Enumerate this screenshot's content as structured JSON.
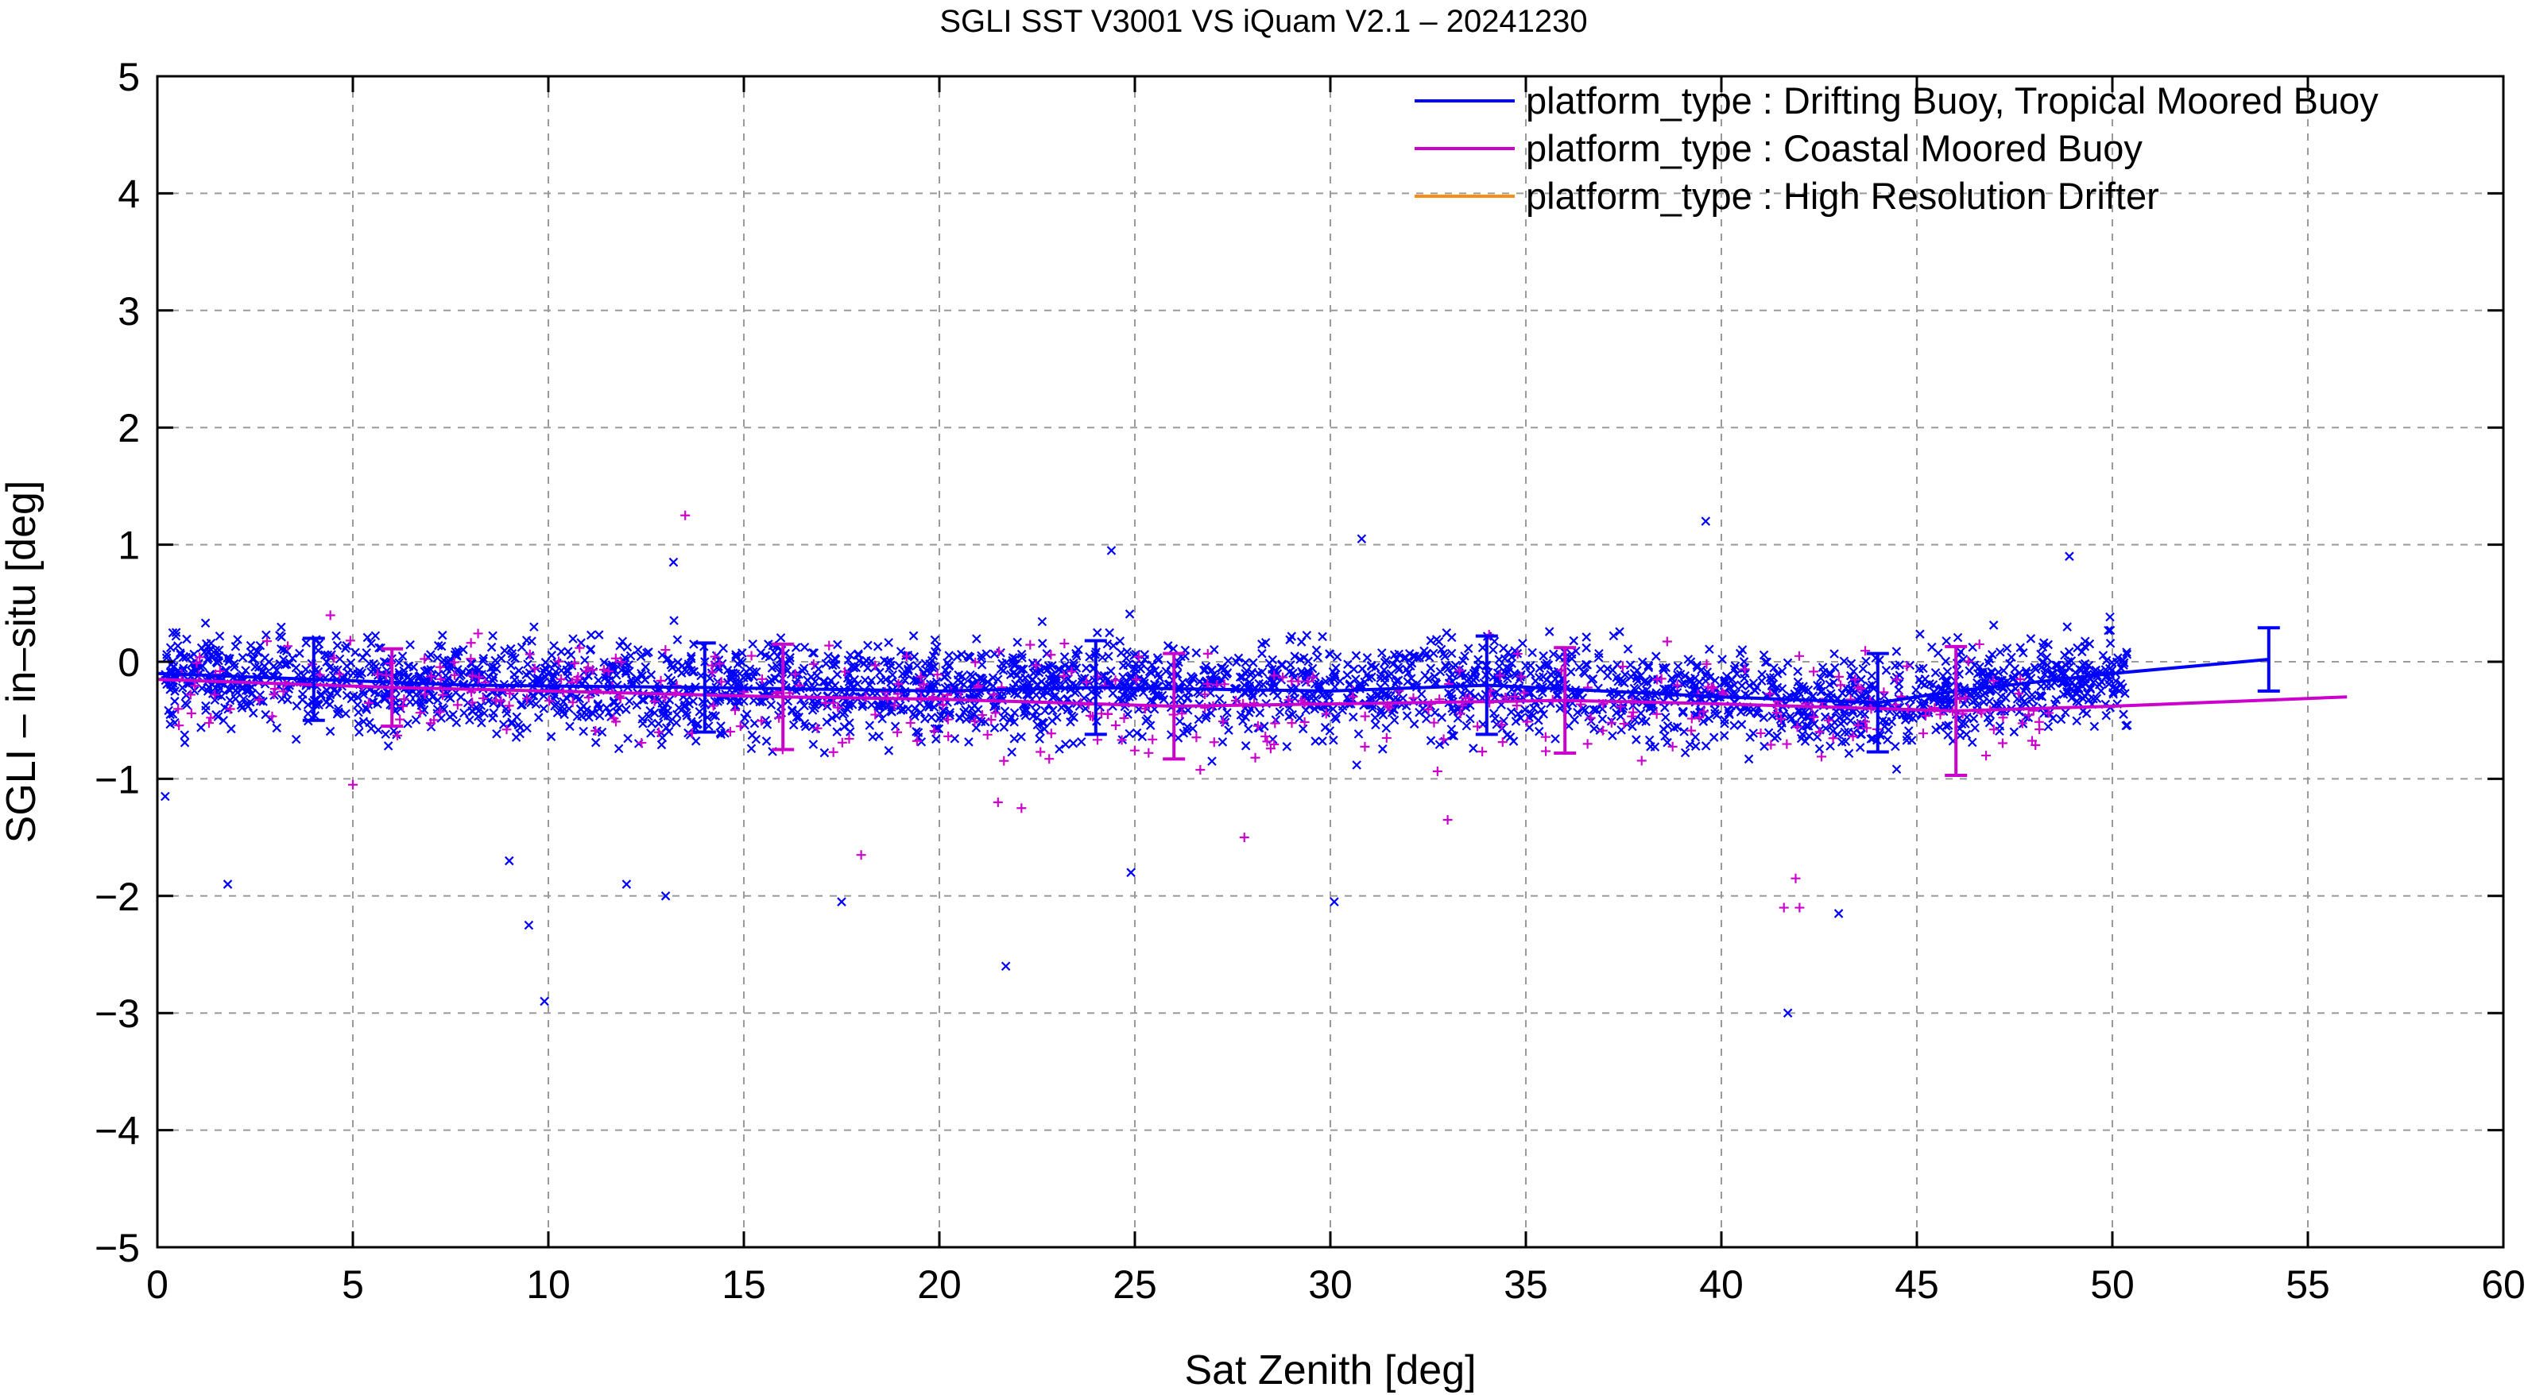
{
  "chart_data": {
    "type": "scatter",
    "title": "SGLI SST V3001 VS iQuam V2.1  – 20241230",
    "xlabel": "Sat Zenith [deg]",
    "ylabel": "SGLI – in–situ [deg]",
    "xlim": [
      0,
      60
    ],
    "ylim": [
      -5,
      5
    ],
    "xticks": [
      0,
      5,
      10,
      15,
      20,
      25,
      30,
      35,
      40,
      45,
      50,
      55,
      60
    ],
    "yticks": [
      -5,
      -4,
      -3,
      -2,
      -1,
      0,
      1,
      2,
      3,
      4,
      5
    ],
    "xtick_labels": [
      "0",
      "5",
      "10",
      "15",
      "20",
      "25",
      "30",
      "35",
      "40",
      "45",
      "50",
      "55",
      "60"
    ],
    "ytick_labels": [
      "−5",
      "−4",
      "−3",
      "−2",
      "−1",
      "0",
      "1",
      "2",
      "3",
      "4",
      "5"
    ],
    "grid": true,
    "legend_position": "top-right",
    "series": [
      {
        "name": "platform_type : Drifting Buoy, Tropical Moored Buoy",
        "color": "#0000ff",
        "marker": "x",
        "mean_line": [
          {
            "x": 0,
            "y": -0.1
          },
          {
            "x": 4,
            "y": -0.15
          },
          {
            "x": 8,
            "y": -0.2
          },
          {
            "x": 14,
            "y": -0.22
          },
          {
            "x": 20,
            "y": -0.25
          },
          {
            "x": 24,
            "y": -0.22
          },
          {
            "x": 30,
            "y": -0.25
          },
          {
            "x": 34,
            "y": -0.2
          },
          {
            "x": 40,
            "y": -0.3
          },
          {
            "x": 44,
            "y": -0.35
          },
          {
            "x": 46,
            "y": -0.25
          },
          {
            "x": 50,
            "y": -0.1
          },
          {
            "x": 54,
            "y": 0.02
          }
        ],
        "error_bars": [
          {
            "x": 4,
            "mean": -0.15,
            "sd": 0.35
          },
          {
            "x": 14,
            "mean": -0.22,
            "sd": 0.38
          },
          {
            "x": 24,
            "mean": -0.22,
            "sd": 0.4
          },
          {
            "x": 34,
            "mean": -0.2,
            "sd": 0.42
          },
          {
            "x": 44,
            "mean": -0.35,
            "sd": 0.42
          },
          {
            "x": 54,
            "mean": 0.02,
            "sd": 0.27
          }
        ],
        "outliers": [
          {
            "x": 1.8,
            "y": -1.9
          },
          {
            "x": 9.0,
            "y": -1.7
          },
          {
            "x": 9.5,
            "y": -2.25
          },
          {
            "x": 9.9,
            "y": -2.9
          },
          {
            "x": 12.0,
            "y": -1.9
          },
          {
            "x": 13.0,
            "y": -2.0
          },
          {
            "x": 17.5,
            "y": -2.05
          },
          {
            "x": 21.7,
            "y": -2.6
          },
          {
            "x": 24.9,
            "y": -1.8
          },
          {
            "x": 30.1,
            "y": -2.05
          },
          {
            "x": 41.7,
            "y": -3.0
          },
          {
            "x": 43.0,
            "y": -2.15
          },
          {
            "x": 39.6,
            "y": 1.2
          },
          {
            "x": 30.8,
            "y": 1.05
          },
          {
            "x": 24.4,
            "y": 0.95
          },
          {
            "x": 13.2,
            "y": 0.85
          },
          {
            "x": 48.9,
            "y": 0.9
          },
          {
            "x": 0.2,
            "y": -1.15
          }
        ]
      },
      {
        "name": "platform_type : Coastal Moored Buoy",
        "color": "#cc00cc",
        "marker": "+",
        "mean_line": [
          {
            "x": 0,
            "y": -0.15
          },
          {
            "x": 6,
            "y": -0.22
          },
          {
            "x": 10,
            "y": -0.25
          },
          {
            "x": 16,
            "y": -0.3
          },
          {
            "x": 20,
            "y": -0.32
          },
          {
            "x": 26,
            "y": -0.38
          },
          {
            "x": 30,
            "y": -0.36
          },
          {
            "x": 36,
            "y": -0.33
          },
          {
            "x": 40,
            "y": -0.36
          },
          {
            "x": 46,
            "y": -0.42
          },
          {
            "x": 50,
            "y": -0.38
          },
          {
            "x": 56,
            "y": -0.3
          }
        ],
        "error_bars": [
          {
            "x": 6,
            "mean": -0.22,
            "sd": 0.33
          },
          {
            "x": 16,
            "mean": -0.3,
            "sd": 0.45
          },
          {
            "x": 26,
            "mean": -0.38,
            "sd": 0.45
          },
          {
            "x": 36,
            "mean": -0.33,
            "sd": 0.45
          },
          {
            "x": 46,
            "mean": -0.42,
            "sd": 0.55
          }
        ],
        "outliers": [
          {
            "x": 13.5,
            "y": 1.25
          },
          {
            "x": 21.5,
            "y": -1.2
          },
          {
            "x": 22.1,
            "y": -1.25
          },
          {
            "x": 27.8,
            "y": -1.5
          },
          {
            "x": 41.6,
            "y": -2.1
          },
          {
            "x": 41.9,
            "y": -1.85
          },
          {
            "x": 42.0,
            "y": -2.1
          },
          {
            "x": 18.0,
            "y": -1.65
          },
          {
            "x": 33.0,
            "y": -1.35
          },
          {
            "x": 5.0,
            "y": -1.05
          }
        ]
      },
      {
        "name": "platform_type : High Resolution Drifter",
        "color": "#ff8c1a",
        "marker": "line",
        "mean_line": []
      }
    ]
  }
}
